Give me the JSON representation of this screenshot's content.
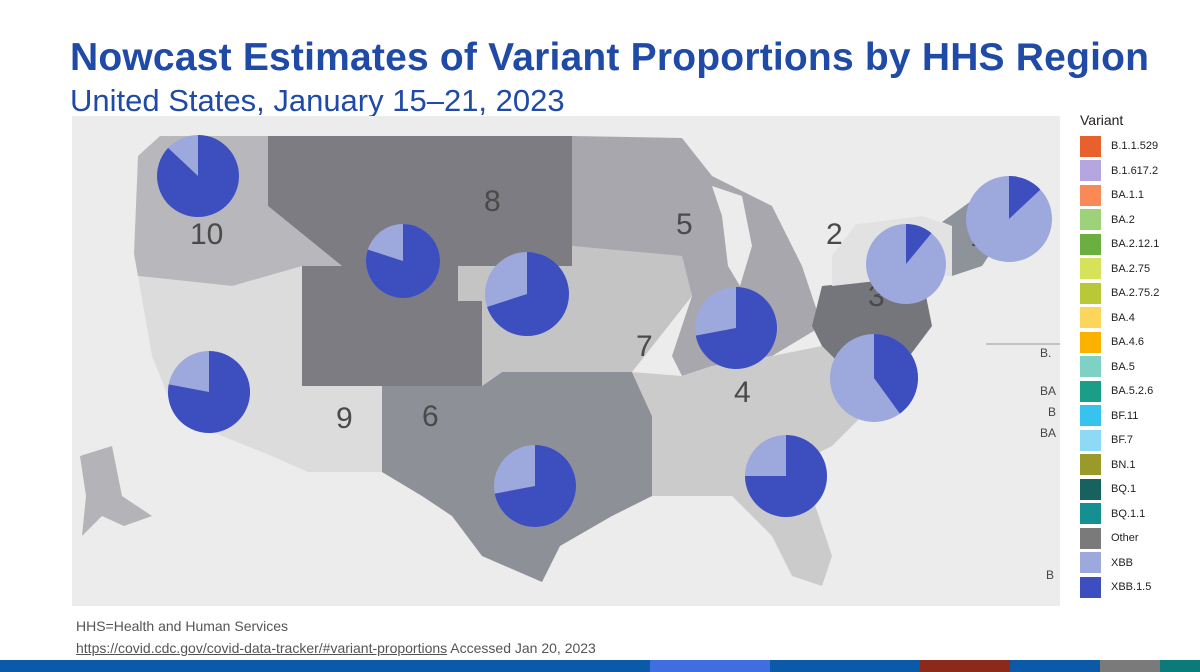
{
  "title": "Nowcast Estimates of Variant Proportions by HHS Region",
  "subtitle": "United States, January 15–21, 2023",
  "legend": {
    "title": "Variant",
    "items": [
      {
        "label": "B.1.1.529",
        "color": "#e8612c"
      },
      {
        "label": "B.1.617.2",
        "color": "#b6a6e0"
      },
      {
        "label": "BA.1.1",
        "color": "#f98a57"
      },
      {
        "label": "BA.2",
        "color": "#9ed27a"
      },
      {
        "label": "BA.2.12.1",
        "color": "#6aaf3f"
      },
      {
        "label": "BA.2.75",
        "color": "#d5e25a"
      },
      {
        "label": "BA.2.75.2",
        "color": "#b9c837"
      },
      {
        "label": "BA.4",
        "color": "#fcd65a"
      },
      {
        "label": "BA.4.6",
        "color": "#fbb100"
      },
      {
        "label": "BA.5",
        "color": "#7fd1c4"
      },
      {
        "label": "BA.5.2.6",
        "color": "#1a9e88"
      },
      {
        "label": "BF.11",
        "color": "#38c2ee"
      },
      {
        "label": "BF.7",
        "color": "#8edaf6"
      },
      {
        "label": "BN.1",
        "color": "#9a9a2a"
      },
      {
        "label": "BQ.1",
        "color": "#17625e"
      },
      {
        "label": "BQ.1.1",
        "color": "#168f93"
      },
      {
        "label": "Other",
        "color": "#7a7a7a"
      },
      {
        "label": "XBB",
        "color": "#9da8dc"
      },
      {
        "label": "XBB.1.5",
        "color": "#3d4fbf"
      }
    ]
  },
  "regions": [
    {
      "label": "1",
      "xbb15": 0.13
    },
    {
      "label": "2",
      "xbb15": 0.11
    },
    {
      "label": "3",
      "xbb15": 0.4
    },
    {
      "label": "4",
      "xbb15": 0.75
    },
    {
      "label": "5",
      "xbb15": 0.72
    },
    {
      "label": "6",
      "xbb15": 0.72
    },
    {
      "label": "7",
      "xbb15": 0.7
    },
    {
      "label": "8",
      "xbb15": 0.8
    },
    {
      "label": "9",
      "xbb15": 0.78
    },
    {
      "label": "10",
      "xbb15": 0.87
    }
  ],
  "stray_labels": [
    "B.",
    "BA",
    "B",
    "BA",
    "B"
  ],
  "footnote": "HHS=Health and Human Services",
  "source": {
    "link": "https://covid.cdc.gov/covid-data-tracker/#variant-proportions",
    "accessed": "Accessed Jan 20, 2023"
  },
  "colors": {
    "title": "#1f4aa6",
    "xbb": "#9da8dc",
    "xbb15": "#3d4fbf"
  },
  "bottom_bar_colors": [
    "#0a5aa8",
    "#3d6fe0",
    "#0a5aa8",
    "#8b2a1a",
    "#0a5aa8",
    "#7a7a7a",
    "#0a7a7a"
  ]
}
